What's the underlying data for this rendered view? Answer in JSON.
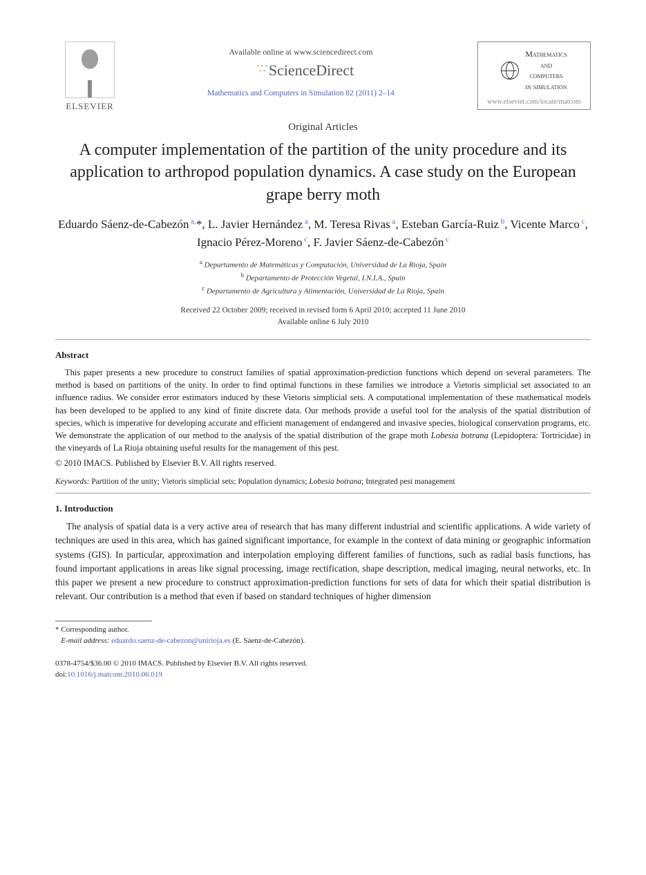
{
  "header": {
    "publisher_label": "ELSEVIER",
    "available_text": "Available online at www.sciencedirect.com",
    "platform_name": "ScienceDirect",
    "citation": "Mathematics and Computers in Simulation 82 (2011) 2–14",
    "journal_box": {
      "line1": "Mathematics",
      "line2": "and",
      "line3": "computers",
      "line4": "in simulation",
      "url": "www.elsevier.com/locate/matcom"
    }
  },
  "article_type": "Original Articles",
  "title": "A computer implementation of the partition of the unity procedure and its application to arthropod population dynamics. A case study on the European grape berry moth",
  "authors_html": "Eduardo Sáenz-de-Cabezón<sup> a,</sup>*, L. Javier Hernández<sup> a</sup>, M. Teresa Rivas<sup> a</sup>, Esteban García-Ruiz<sup> b</sup>, Vicente Marco<sup> c</sup>, Ignacio Pérez-Moreno<sup> c</sup>, F. Javier Sáenz-de-Cabezón<sup> c</sup>",
  "affiliations": [
    {
      "sup": "a",
      "text": "Departamento de Matemáticas y Computación, Universidad de La Rioja, Spain"
    },
    {
      "sup": "b",
      "text": "Departamento de Protección Vegetal, I.N.I.A., Spain"
    },
    {
      "sup": "c",
      "text": "Departamento de Agricultura y Alimentación, Universidad de La Rioja, Spain"
    }
  ],
  "dates": {
    "line1": "Received 22 October 2009; received in revised form 6 April 2010; accepted 11 June 2010",
    "line2": "Available online 6 July 2010"
  },
  "abstract": {
    "heading": "Abstract",
    "body": "This paper presents a new procedure to construct families of spatial approximation-prediction functions which depend on several parameters. The method is based on partitions of the unity. In order to find optimal functions in these families we introduce a Vietoris simplicial set associated to an influence radius. We consider error estimators induced by these Vietoris simplicial sets. A computational implementation of these mathematical models has been developed to be applied to any kind of finite discrete data. Our methods provide a useful tool for the analysis of the spatial distribution of species, which is imperative for developing accurate and efficient management of endangered and invasive species, biological conservation programs, etc. We demonstrate the application of our method to the analysis of the spatial distribution of the grape moth <i>Lobesia botrana</i> (Lepidoptera: Tortricidae) in the vineyards of La Rioja obtaining useful results for the management of this pest.",
    "copyright": "© 2010 IMACS. Published by Elsevier B.V. All rights reserved."
  },
  "keywords": {
    "label": "Keywords:",
    "text": "Partition of the unity; Vietoris simplicial sets; Population dynamics; Lobesia botrana; Integrated pest management"
  },
  "introduction": {
    "heading": "1.  Introduction",
    "body": "The analysis of spatial data is a very active area of research that has many different industrial and scientific applications. A wide variety of techniques are used in this area, which has gained significant importance, for example in the context of data mining or geographic information systems (GIS). In particular, approximation and interpolation employing different families of functions, such as radial basis functions, has found important applications in areas like signal processing, image rectification, shape description, medical imaging, neural networks, etc. In this paper we present a new procedure to construct approximation-prediction functions for sets of data for which their spatial distribution is relevant. Our contribution is a method that even if based on standard techniques of higher dimension"
  },
  "footnotes": {
    "corresponding": "* Corresponding author.",
    "email_label": "E-mail address:",
    "email": "eduardo.saenz-de-cabezon@unirioja.es",
    "email_name": "(E. Sáenz-de-Cabezón)."
  },
  "footer": {
    "line1": "0378-4754/$36.00 © 2010 IMACS. Published by Elsevier B.V. All rights reserved.",
    "doi_label": "doi:",
    "doi": "10.1016/j.matcom.2010.06.019"
  },
  "colors": {
    "link": "#4a5fc1",
    "text": "#222222",
    "rule": "#999999"
  }
}
